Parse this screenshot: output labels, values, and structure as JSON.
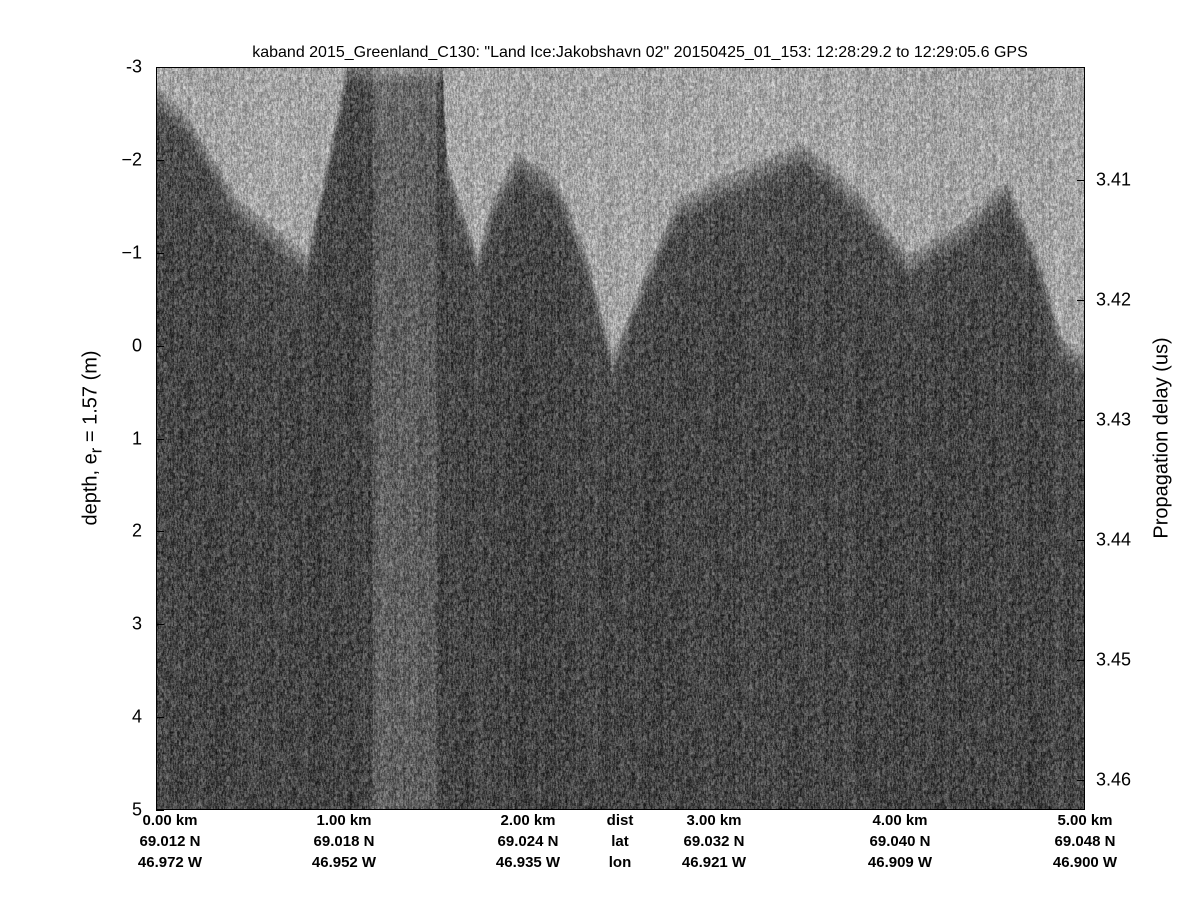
{
  "chart_data": {
    "type": "heatmap",
    "title": "kaband 2015_Greenland_C130: \"Land Ice:Jakobshavn 02\"  20150425_01_153: 12:28:29.2 to 12:29:05.6 GPS",
    "ylabel_prefix": "depth, e",
    "ylabel_sub": "r",
    "ylabel_suffix": " = 1.57 (m)",
    "y2label": "Propagation delay (us)",
    "ylim": [
      -3,
      5
    ],
    "y_reversed": true,
    "y_ticks": [
      "-3",
      "−2",
      "−1",
      "0",
      "1",
      "2",
      "3",
      "4",
      "5"
    ],
    "y2_ticks": [
      "3.41",
      "3.42",
      "3.43",
      "3.44",
      "3.45",
      "3.46"
    ],
    "colormap": "gray",
    "x_ticks": [
      {
        "dist": "0.00 km",
        "lat": "69.012 N",
        "lon": "46.972 W"
      },
      {
        "dist": "1.00 km",
        "lat": "69.018 N",
        "lon": "46.952 W"
      },
      {
        "dist": "2.00 km",
        "lat": "69.024 N",
        "lon": "46.935 W"
      },
      {
        "dist": "3.00 km",
        "lat": "69.032 N",
        "lon": "46.921 W"
      },
      {
        "dist": "4.00 km",
        "lat": "69.040 N",
        "lon": "46.909 W"
      },
      {
        "dist": "5.00 km",
        "lat": "69.048 N",
        "lon": "46.900 W"
      }
    ],
    "x_row_labels": {
      "dist": "dist",
      "lat": "lat",
      "lon": "lon"
    }
  }
}
